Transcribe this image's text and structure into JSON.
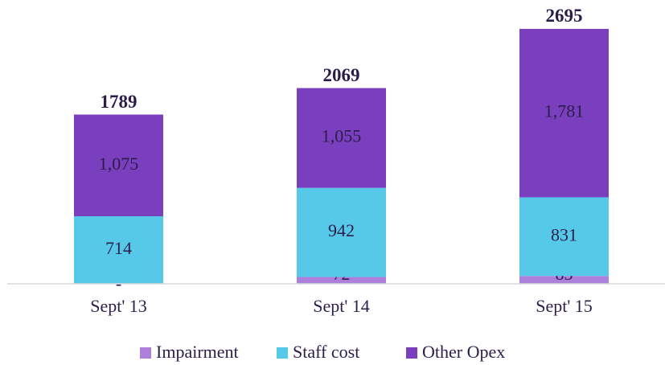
{
  "chart_data": {
    "type": "stacked_bar",
    "categories": [
      "Sept' 13",
      "Sept' 14",
      "Sept' 15"
    ],
    "series": [
      {
        "name": "Impairment",
        "color": "#ad80dc",
        "values": [
          0,
          72,
          83
        ],
        "value_labels": [
          "-",
          "72",
          "83"
        ]
      },
      {
        "name": "Staff cost",
        "color": "#56c9e9",
        "values": [
          714,
          942,
          831
        ]
      },
      {
        "name": "Other Opex",
        "color": "#7a3fbe",
        "values": [
          1075,
          1055,
          1781
        ],
        "value_labels": [
          "1,075",
          "1,055",
          "1,781"
        ]
      }
    ],
    "totals": [
      1789,
      2069,
      2695
    ],
    "ylim": [
      0,
      3000
    ],
    "legend": "bottom"
  }
}
